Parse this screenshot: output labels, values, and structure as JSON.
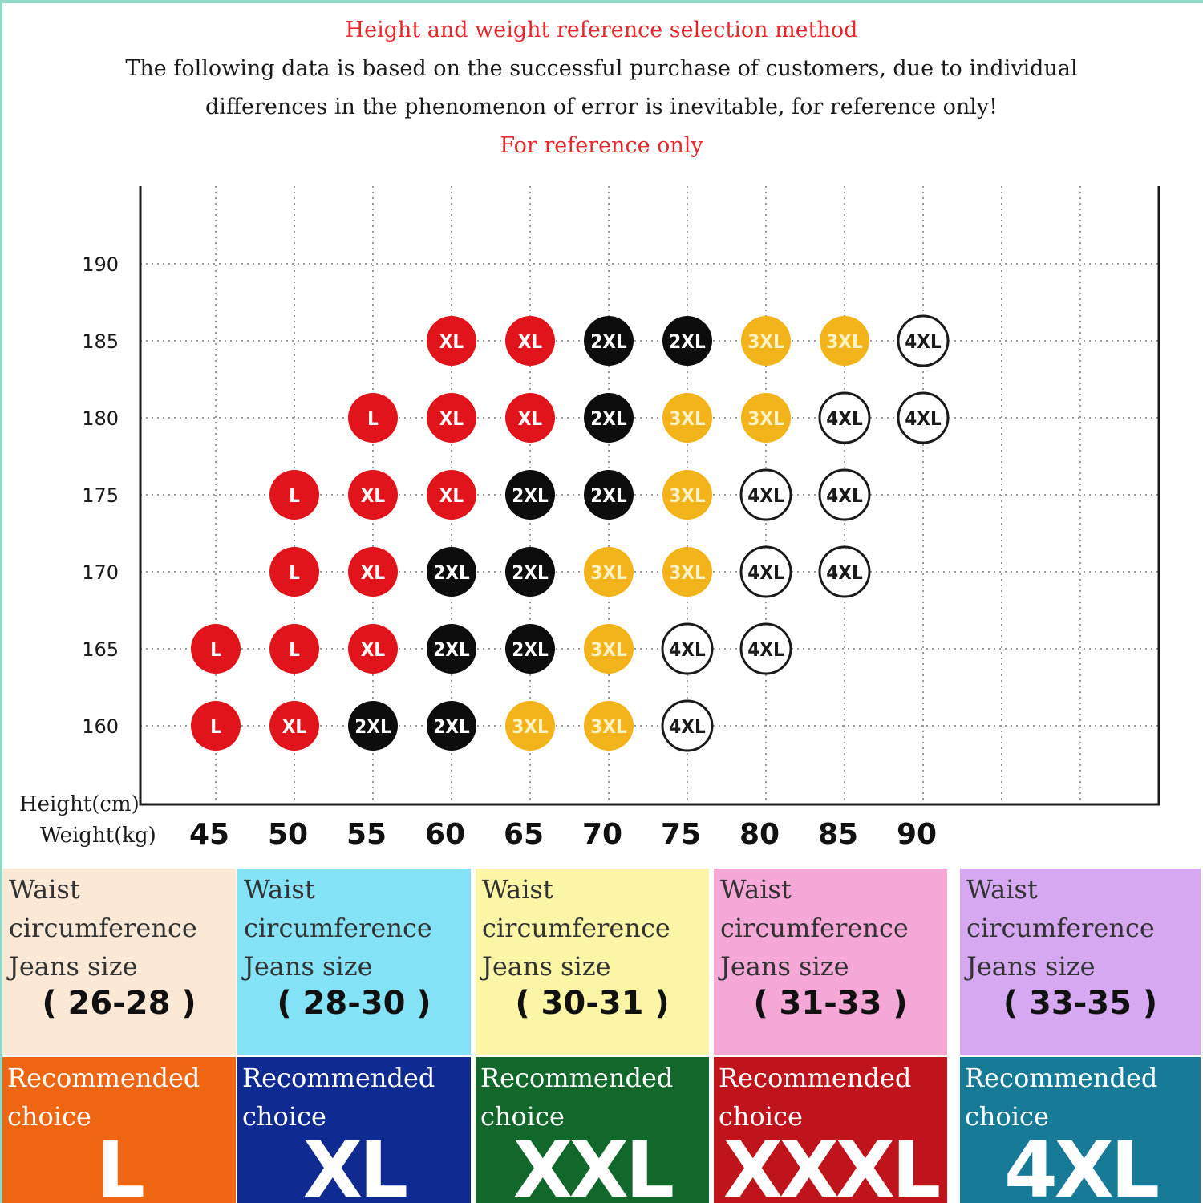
{
  "header": {
    "title": "Height and weight reference selection method",
    "note_line1": "The following data is based on the successful purchase of customers, due to individual",
    "note_line2": "differences in the phenomenon of error is inevitable, for reference only!",
    "note_red": "For reference only"
  },
  "chart_data": {
    "type": "scatter",
    "ylabel": "Height(cm)",
    "xlabel": "Weight(kg)",
    "x_ticks": [
      45,
      50,
      55,
      60,
      65,
      70,
      75,
      80,
      85,
      90
    ],
    "y_ticks": [
      160,
      165,
      170,
      175,
      180,
      185,
      190
    ],
    "xlim": [
      40,
      100
    ],
    "ylim": [
      155,
      195
    ],
    "grid": true,
    "size_colors": {
      "L": "#e0141a",
      "XL": "#e0141a",
      "2XL": "#0d0d0d",
      "3XL": "#f2b31b",
      "4XL": "#ffffff"
    },
    "points": [
      {
        "w": 45,
        "h": 160,
        "size": "L",
        "label": "L"
      },
      {
        "w": 50,
        "h": 160,
        "size": "XL",
        "label": "XL"
      },
      {
        "w": 55,
        "h": 160,
        "size": "2XL",
        "label": "2XL"
      },
      {
        "w": 60,
        "h": 160,
        "size": "2XL",
        "label": "2XL"
      },
      {
        "w": 65,
        "h": 160,
        "size": "3XL",
        "label": "3XL"
      },
      {
        "w": 70,
        "h": 160,
        "size": "3XL",
        "label": "3XL"
      },
      {
        "w": 75,
        "h": 160,
        "size": "4XL",
        "label": "4XL"
      },
      {
        "w": 45,
        "h": 165,
        "size": "L",
        "label": "L"
      },
      {
        "w": 50,
        "h": 165,
        "size": "L",
        "label": "L"
      },
      {
        "w": 55,
        "h": 165,
        "size": "XL",
        "label": "XL"
      },
      {
        "w": 60,
        "h": 165,
        "size": "2XL",
        "label": "2XL"
      },
      {
        "w": 65,
        "h": 165,
        "size": "2XL",
        "label": "2XL"
      },
      {
        "w": 70,
        "h": 165,
        "size": "3XL",
        "label": "3XL"
      },
      {
        "w": 75,
        "h": 165,
        "size": "4XL",
        "label": "4XL"
      },
      {
        "w": 80,
        "h": 165,
        "size": "4XL",
        "label": "4XL"
      },
      {
        "w": 50,
        "h": 170,
        "size": "L",
        "label": "L"
      },
      {
        "w": 55,
        "h": 170,
        "size": "XL",
        "label": "XL"
      },
      {
        "w": 60,
        "h": 170,
        "size": "2XL",
        "label": "2XL"
      },
      {
        "w": 65,
        "h": 170,
        "size": "2XL",
        "label": "2XL"
      },
      {
        "w": 70,
        "h": 170,
        "size": "3XL",
        "label": "3XL"
      },
      {
        "w": 75,
        "h": 170,
        "size": "3XL",
        "label": "3XL"
      },
      {
        "w": 80,
        "h": 170,
        "size": "4XL",
        "label": "4XL"
      },
      {
        "w": 85,
        "h": 170,
        "size": "4XL",
        "label": "4XL"
      },
      {
        "w": 50,
        "h": 175,
        "size": "L",
        "label": "L"
      },
      {
        "w": 55,
        "h": 175,
        "size": "XL",
        "label": "XL"
      },
      {
        "w": 60,
        "h": 175,
        "size": "XL",
        "label": "XL"
      },
      {
        "w": 65,
        "h": 175,
        "size": "2XL",
        "label": "2XL"
      },
      {
        "w": 70,
        "h": 175,
        "size": "2XL",
        "label": "2XL"
      },
      {
        "w": 75,
        "h": 175,
        "size": "3XL",
        "label": "3XL"
      },
      {
        "w": 80,
        "h": 175,
        "size": "4XL",
        "label": "4XL"
      },
      {
        "w": 85,
        "h": 175,
        "size": "4XL",
        "label": "4XL"
      },
      {
        "w": 55,
        "h": 180,
        "size": "L",
        "label": "L"
      },
      {
        "w": 60,
        "h": 180,
        "size": "XL",
        "label": "XL"
      },
      {
        "w": 65,
        "h": 180,
        "size": "XL",
        "label": "XL"
      },
      {
        "w": 70,
        "h": 180,
        "size": "2XL",
        "label": "2XL"
      },
      {
        "w": 75,
        "h": 180,
        "size": "3XL",
        "label": "3XL"
      },
      {
        "w": 80,
        "h": 180,
        "size": "3XL",
        "label": "3XL"
      },
      {
        "w": 85,
        "h": 180,
        "size": "4XL",
        "label": "4XL"
      },
      {
        "w": 90,
        "h": 180,
        "size": "4XL",
        "label": "4XL"
      },
      {
        "w": 60,
        "h": 185,
        "size": "XL",
        "label": "XL"
      },
      {
        "w": 65,
        "h": 185,
        "size": "XL",
        "label": "XL"
      },
      {
        "w": 70,
        "h": 185,
        "size": "2XL",
        "label": "2XL"
      },
      {
        "w": 75,
        "h": 185,
        "size": "2XL",
        "label": "2XL"
      },
      {
        "w": 80,
        "h": 185,
        "size": "3XL",
        "label": "3XL"
      },
      {
        "w": 85,
        "h": 185,
        "size": "3XL",
        "label": "3XL"
      },
      {
        "w": 90,
        "h": 185,
        "size": "4XL",
        "label": "4XL"
      }
    ]
  },
  "cards": [
    {
      "bg": "#fbe9d6",
      "rec_bg": "#ee6612",
      "waist": "Waist",
      "circ": "circumference",
      "jeans": "Jeans size",
      "range": "( 26-28 )",
      "rec1": "Recommended",
      "rec2": "choice",
      "size": "L"
    },
    {
      "bg": "#84e2f6",
      "rec_bg": "#0f2a90",
      "waist": "Waist",
      "circ": "circumference",
      "jeans": "Jeans size",
      "range": "( 28-30 )",
      "rec1": "Recommended",
      "rec2": "choice",
      "size": "XL"
    },
    {
      "bg": "#fbf6a6",
      "rec_bg": "#12682a",
      "waist": "Waist",
      "circ": "circumference",
      "jeans": "Jeans size",
      "range": "( 30-31 )",
      "rec1": "Recommended",
      "rec2": "choice",
      "size": "XXL"
    },
    {
      "bg": "#f5a7d6",
      "rec_bg": "#c0141c",
      "waist": "Waist",
      "circ": "circumference",
      "jeans": "Jeans size",
      "range": "( 31-33 )",
      "rec1": "Recommended",
      "rec2": "choice",
      "size": "XXXL"
    },
    {
      "bg": "#d6a8f2",
      "rec_bg": "#177a96",
      "waist": "Waist",
      "circ": "circumference",
      "jeans": "Jeans size",
      "range": "( 33-35 )",
      "rec1": "Recommended",
      "rec2": "choice",
      "size": "4XL"
    }
  ]
}
